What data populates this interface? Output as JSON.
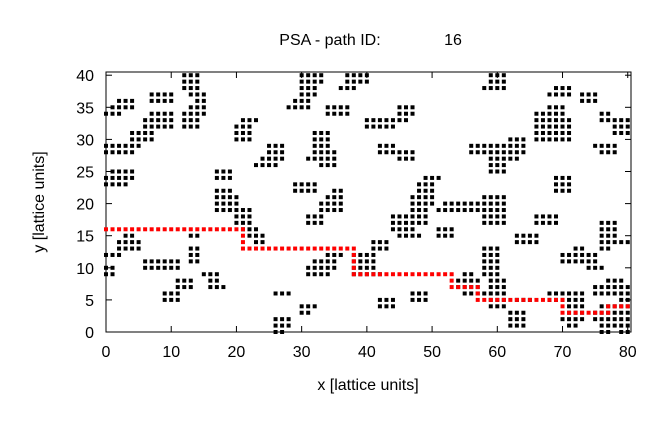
{
  "chart_data": {
    "type": "scatter",
    "title": "PSA - path ID:",
    "path_id": "16",
    "xlabel": "x [lattice units]",
    "ylabel": "y [lattice units]",
    "xlim": [
      0,
      80.5
    ],
    "ylim": [
      0,
      40.5
    ],
    "x_ticks": [
      0,
      10,
      20,
      30,
      40,
      50,
      60,
      70,
      80
    ],
    "y_ticks": [
      0,
      5,
      10,
      15,
      20,
      25,
      30,
      35,
      40
    ],
    "grid": false,
    "colors": {
      "occupied": "#000000",
      "path": "#ff0000"
    },
    "series": [
      {
        "kind": "occupied-sites",
        "rows": [
          "0:26-27,76-77,79-80",
          "1:26-28,62-64,71-72,76-80",
          "2:26-28,62-64,70-73,75-80",
          "3:30-31,62-64,71-73,75-80",
          "4:30-32,42-44,59-61,71-73,76-80",
          "5:9-11,42-44,47-49,59-61,63-65,68-73,79-80",
          "6:9-11,26-28,47-49,55-57,58-61,68-73,75-80",
          "7:11-13,16-18,54-57,59-61,75-80",
          "8:11-13,16-17,54-57,59-61,77-79",
          "9:0-1,15-17,31-34,38-42,55-56,58-60",
          "10:0-1,6-11,31-35,38-41,58-60,74-76",
          "11:6-11,13-14,32-35,38-41,58-60,70-75",
          "12:0-2,13-14,34-36,38-41,58-60,70-75",
          "13:2-5,13-14,41-43,58-60,72-73,76-77",
          "14:2-5,23-24,41-43,63-66,76-80",
          "15:3-4,13-14,22-24,45-48,51-53,63-66,76-78",
          "16:21-23,44-47,51-53,76-78",
          "17:20-22,31-33,44-49,58-61,66-69,76-78",
          "18:20-22,31-33,44-49,58-61,66-69",
          "19:17-22,33-36,47-49,51-61",
          "20:17-20,33-36,47-50,52-61",
          "21:17-20,34-36,47-50,58-61",
          "22:17-19,29-32,35-36,48-50,69-71",
          "23:0-3,29-32,48-50,69-71",
          "24:0-4,17-19,49-51,69-71",
          "25:1-4,17-19,59-61",
          "26:23-26,33-35,59-61",
          "27:24-27,31-35,45-47,59-63",
          "28:0-4,25-27,32-35,42-47,56-64,76-78",
          "29:0-5,25-27,32-34,42-44,56-64,75-78",
          "30:4-7,20-22,32-34,62-64,66-71",
          "31:4-7,20-22,32-34,66-71,78-80",
          "32:6-10,12-14,20-22,40-44,66-71,78-80",
          "33:6-10,12-14,21-23,40-46,66-71,76-80",
          "34:0-2,7-10,12-15,34-37,45-47,66-70,76-77",
          "35:1-4,13-15,28-31,34-37,45-47,68-70",
          "36:2-4,7-10,14-15,29-31,73-75",
          "37:7-10,13-15,30-32,68-71,73-75",
          "38:12-14,30-32,36-38,58-61,69-71",
          "39:12-14,30-33,37-40,59-61",
          "40:12-14,30-33,37-40,59-61"
        ]
      },
      {
        "kind": "path",
        "name": "",
        "points": [
          [
            0,
            16
          ],
          [
            1,
            16
          ],
          [
            2,
            16
          ],
          [
            3,
            16
          ],
          [
            4,
            16
          ],
          [
            5,
            16
          ],
          [
            6,
            16
          ],
          [
            7,
            16
          ],
          [
            8,
            16
          ],
          [
            9,
            16
          ],
          [
            10,
            16
          ],
          [
            11,
            16
          ],
          [
            12,
            16
          ],
          [
            13,
            16
          ],
          [
            14,
            16
          ],
          [
            15,
            16
          ],
          [
            16,
            16
          ],
          [
            17,
            16
          ],
          [
            18,
            16
          ],
          [
            19,
            16
          ],
          [
            20,
            16
          ],
          [
            21,
            16
          ],
          [
            21,
            15
          ],
          [
            21,
            14
          ],
          [
            21,
            13
          ],
          [
            22,
            13
          ],
          [
            23,
            13
          ],
          [
            24,
            13
          ],
          [
            25,
            13
          ],
          [
            26,
            13
          ],
          [
            27,
            13
          ],
          [
            28,
            13
          ],
          [
            29,
            13
          ],
          [
            30,
            13
          ],
          [
            31,
            13
          ],
          [
            32,
            13
          ],
          [
            33,
            13
          ],
          [
            34,
            13
          ],
          [
            35,
            13
          ],
          [
            36,
            13
          ],
          [
            37,
            13
          ],
          [
            38,
            13
          ],
          [
            38,
            12
          ],
          [
            38,
            11
          ],
          [
            38,
            10
          ],
          [
            38,
            9
          ],
          [
            39,
            9
          ],
          [
            40,
            9
          ],
          [
            41,
            9
          ],
          [
            42,
            9
          ],
          [
            43,
            9
          ],
          [
            44,
            9
          ],
          [
            45,
            9
          ],
          [
            46,
            9
          ],
          [
            47,
            9
          ],
          [
            48,
            9
          ],
          [
            49,
            9
          ],
          [
            50,
            9
          ],
          [
            51,
            9
          ],
          [
            52,
            9
          ],
          [
            53,
            9
          ],
          [
            53,
            8
          ],
          [
            53,
            7
          ],
          [
            54,
            7
          ],
          [
            55,
            7
          ],
          [
            56,
            7
          ],
          [
            57,
            7
          ],
          [
            57,
            6
          ],
          [
            57,
            5
          ],
          [
            58,
            5
          ],
          [
            59,
            5
          ],
          [
            60,
            5
          ],
          [
            61,
            5
          ],
          [
            62,
            5
          ],
          [
            63,
            5
          ],
          [
            64,
            5
          ],
          [
            65,
            5
          ],
          [
            66,
            5
          ],
          [
            67,
            5
          ],
          [
            68,
            5
          ],
          [
            69,
            5
          ],
          [
            70,
            5
          ],
          [
            70,
            4
          ],
          [
            70,
            3
          ],
          [
            71,
            3
          ],
          [
            72,
            3
          ],
          [
            73,
            3
          ],
          [
            74,
            3
          ],
          [
            75,
            3
          ],
          [
            76,
            3
          ],
          [
            77,
            3
          ],
          [
            77,
            4
          ],
          [
            78,
            4
          ],
          [
            79,
            4
          ],
          [
            80,
            4
          ]
        ]
      }
    ]
  }
}
